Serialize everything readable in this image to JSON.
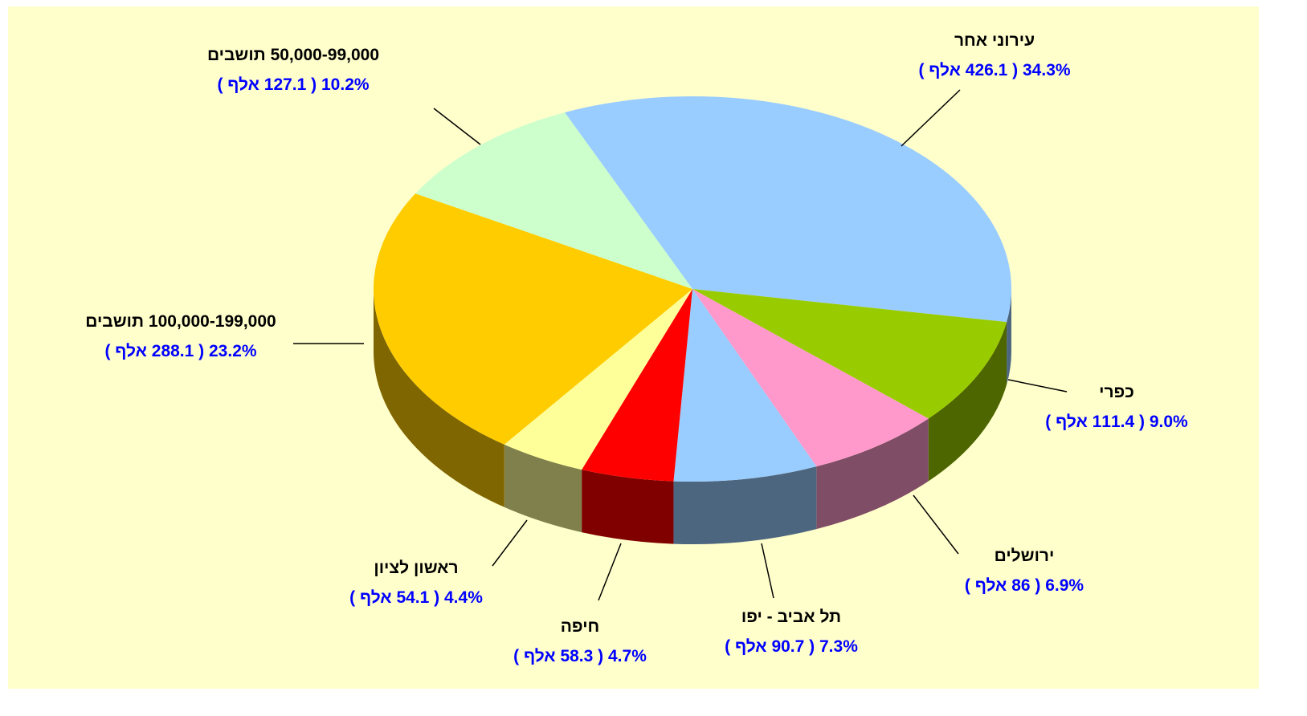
{
  "chart_data": {
    "type": "pie3d",
    "categories": [
      "עירוני אחר",
      "כפרי",
      "ירושלים",
      "תל אביב - יפו",
      "חיפה",
      "ראשון לציון",
      "100,000-199,000 תושבים",
      "50,000-99,000 תושבים"
    ],
    "values": [
      34.3,
      9.0,
      6.9,
      7.3,
      4.7,
      4.4,
      23.2,
      10.2
    ],
    "value_labels": [
      "34.3% ( 426.1 אלף )",
      "9.0% ( 111.4 אלף )",
      "6.9% ( 86 אלף )",
      "7.3% ( 90.7 אלף )",
      "4.7% ( 58.3 אלף )",
      "4.4% ( 54.1 אלף )",
      "23.2% ( 288.1 אלף )",
      "10.2% ( 127.1 אלף )"
    ],
    "colors": [
      "#99ccff",
      "#99cc00",
      "#ff99cc",
      "#99ccff",
      "#ff0000",
      "#ffff99",
      "#ffcc00",
      "#ccffcc"
    ]
  }
}
